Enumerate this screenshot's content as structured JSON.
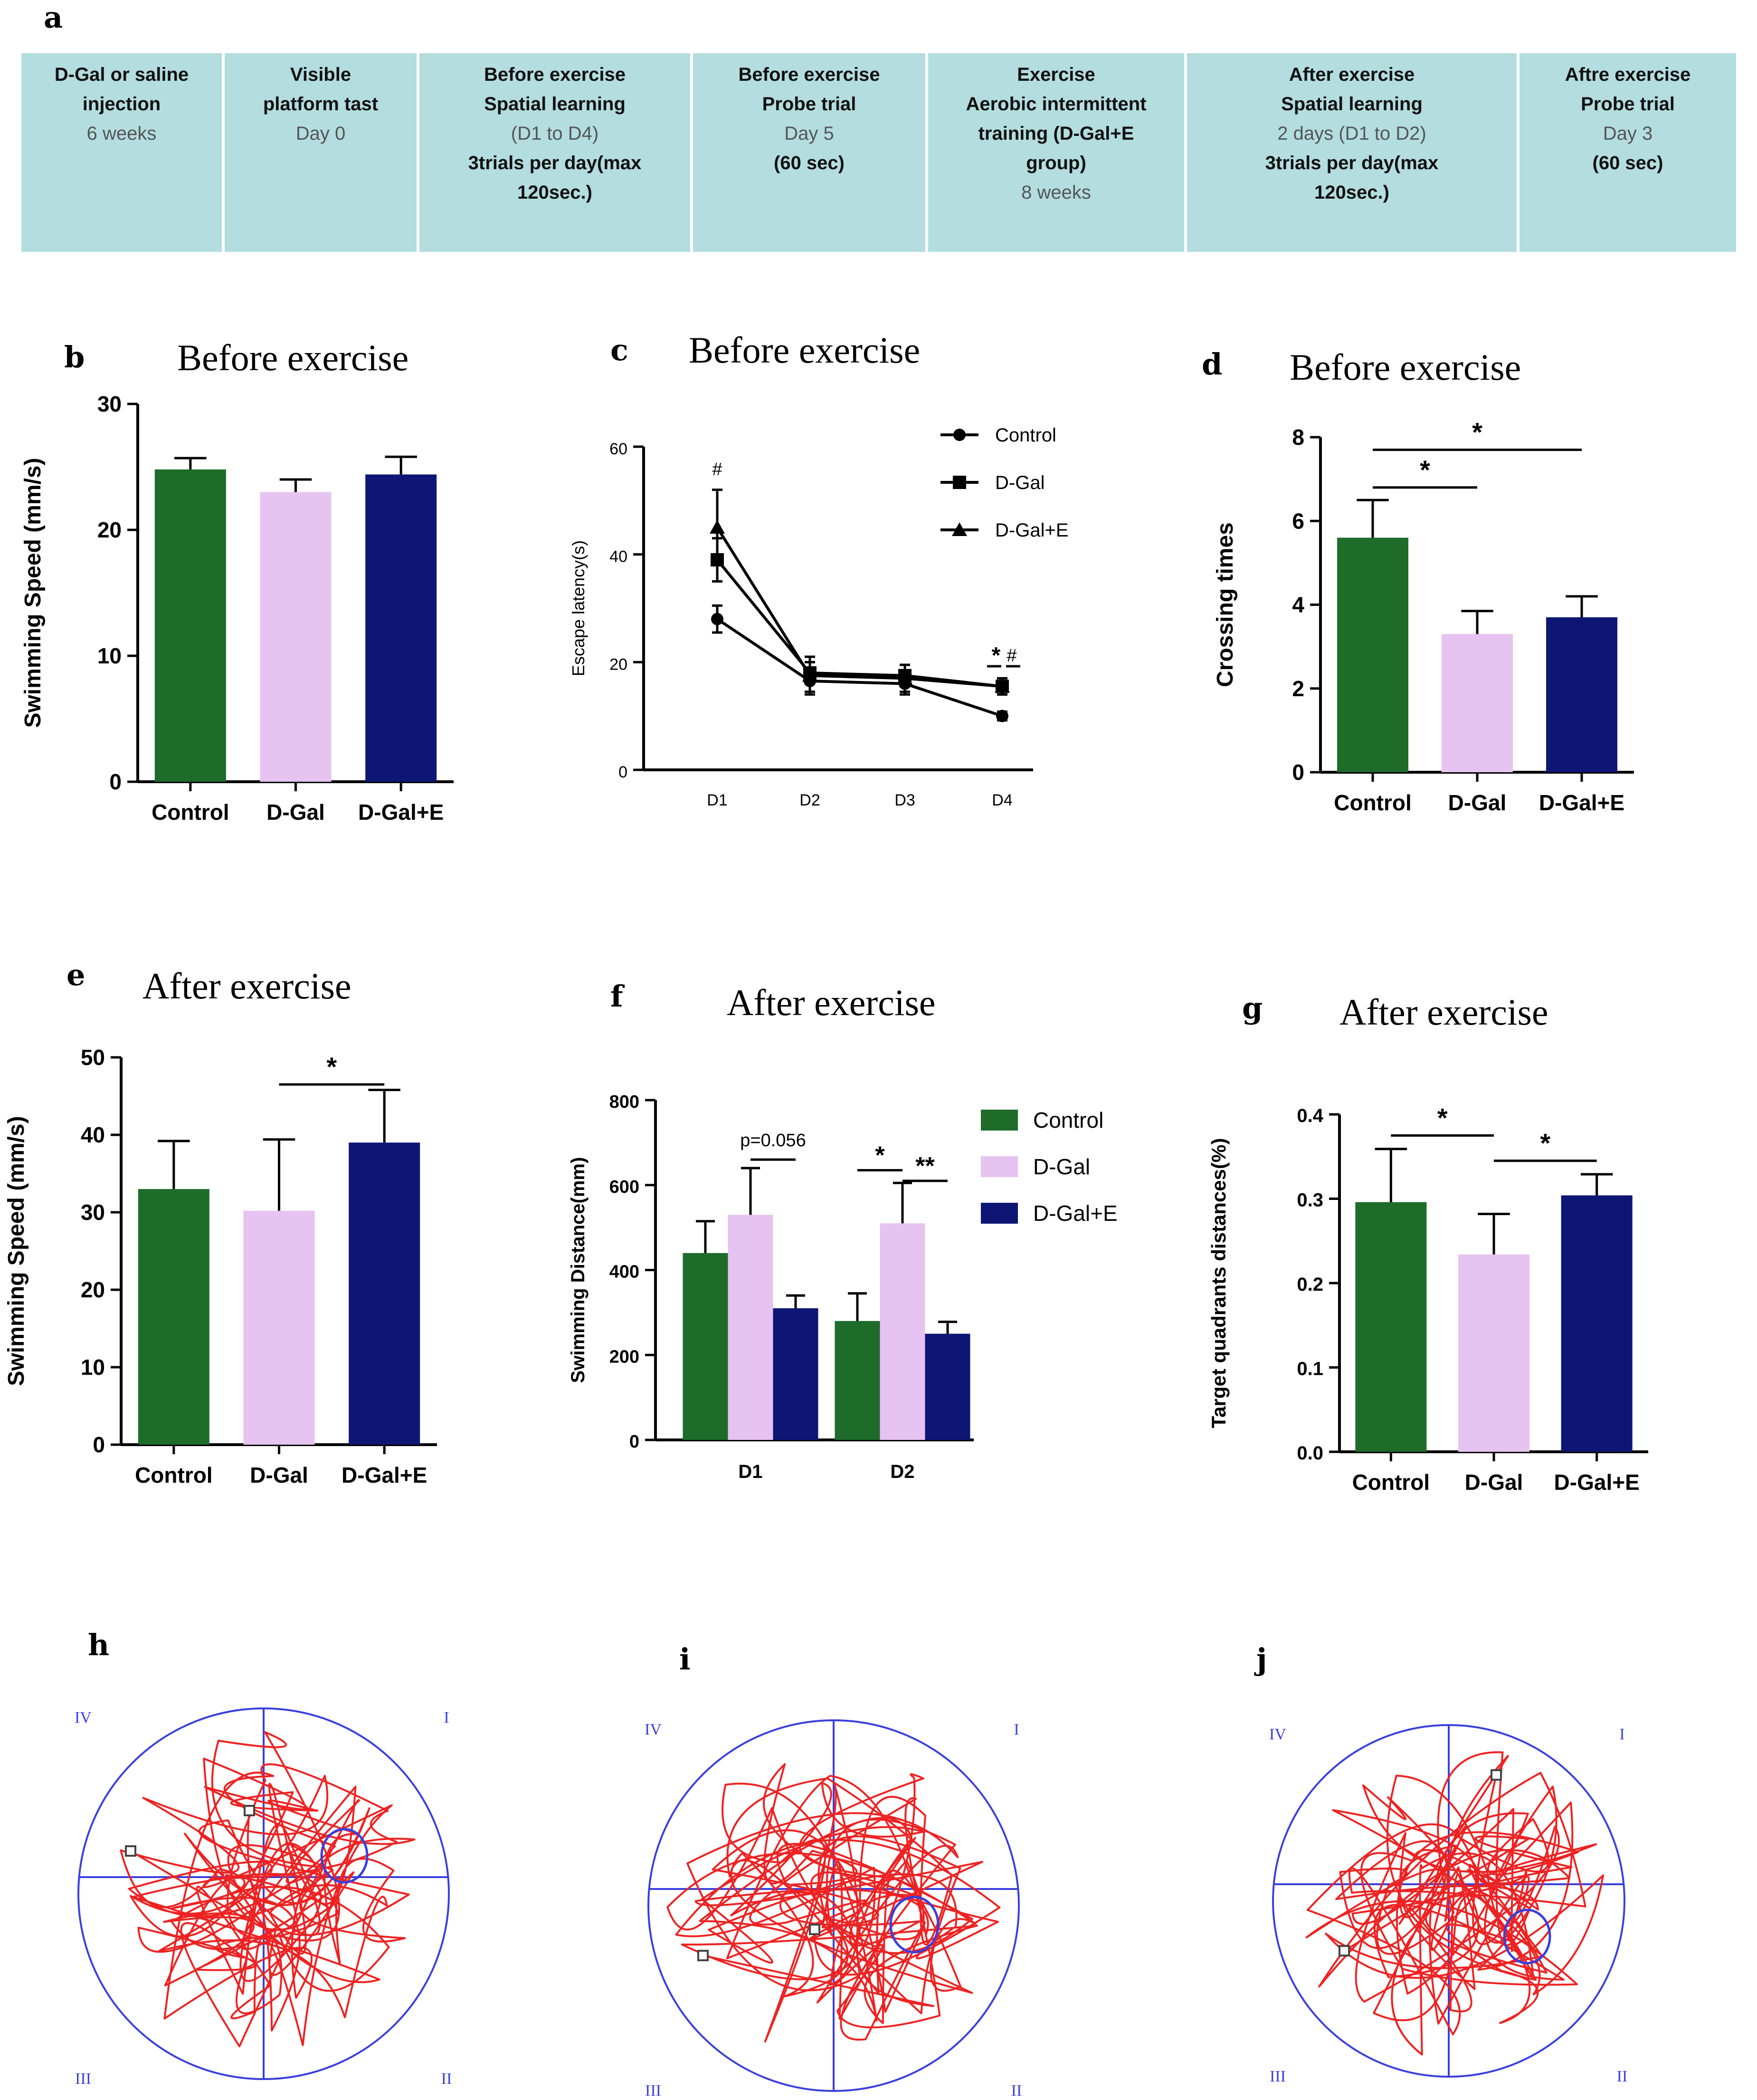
{
  "panels": {
    "a": {
      "letter": "a"
    },
    "b": {
      "letter": "b",
      "title": "Before exercise"
    },
    "c": {
      "letter": "c",
      "title": "Before exercise"
    },
    "d": {
      "letter": "d",
      "title": "Before exercise"
    },
    "e": {
      "letter": "e",
      "title": "After exercise"
    },
    "f": {
      "letter": "f",
      "title": "After exercise"
    },
    "g": {
      "letter": "g",
      "title": "After exercise"
    },
    "h": {
      "letter": "h"
    },
    "i": {
      "letter": "i"
    },
    "j": {
      "letter": "j"
    }
  },
  "timeline": [
    {
      "lines": [
        {
          "t": "D-Gal or  saline",
          "s": "b"
        },
        {
          "t": "injection",
          "s": "b"
        },
        {
          "t": "6 weeks",
          "s": "n"
        }
      ]
    },
    {
      "lines": [
        {
          "t": "Visible",
          "s": "b"
        },
        {
          "t": "platform tast",
          "s": "b"
        },
        {
          "t": "Day 0",
          "s": "n"
        }
      ]
    },
    {
      "lines": [
        {
          "t": "Before exercise",
          "s": "b"
        },
        {
          "t": "Spatial learning",
          "s": "b"
        },
        {
          "t": "(D1 to D4)",
          "s": "n"
        },
        {
          "t": "3trials per day(max",
          "s": "b"
        },
        {
          "t": "120sec.)",
          "s": "b"
        }
      ]
    },
    {
      "lines": [
        {
          "t": "Before exercise",
          "s": "b"
        },
        {
          "t": "Probe trial",
          "s": "b"
        },
        {
          "t": "Day 5",
          "s": "n"
        },
        {
          "t": "(60 sec)",
          "s": "b"
        }
      ]
    },
    {
      "lines": [
        {
          "t": "Exercise",
          "s": "b"
        },
        {
          "t": "Aerobic intermittent",
          "s": "b"
        },
        {
          "t": "training (D-Gal+E",
          "s": "b"
        },
        {
          "t": "group)",
          "s": "b"
        },
        {
          "t": "8 weeks",
          "s": "n"
        }
      ]
    },
    {
      "lines": [
        {
          "t": "After exercise",
          "s": "b"
        },
        {
          "t": "Spatial learning",
          "s": "b"
        },
        {
          "t": "2 days (D1 to D2)",
          "s": "n"
        },
        {
          "t": "3trials per day(max",
          "s": "b"
        },
        {
          "t": "120sec.)",
          "s": "b"
        }
      ]
    },
    {
      "lines": [
        {
          "t": "Aftre exercise",
          "s": "b"
        },
        {
          "t": "Probe trial",
          "s": "b"
        },
        {
          "t": "Day 3",
          "s": "n"
        },
        {
          "t": "(60 sec)",
          "s": "b"
        }
      ]
    }
  ],
  "colors": {
    "control": "#1e6b2a",
    "dgal": "#e6c3f0",
    "dgale": "#0e1675",
    "track": "#ee2222",
    "pool": "#3a3fdd",
    "axis": "#000000"
  },
  "chart_data": [
    {
      "panel": "b",
      "type": "bar",
      "title": "Before exercise",
      "ylabel": "Swimming Speed (mm/s)",
      "categories": [
        "Control",
        "D-Gal",
        "D-Gal+E"
      ],
      "values": [
        24.8,
        23.0,
        24.4
      ],
      "errors": [
        0.9,
        1.0,
        1.4
      ],
      "ylim": [
        0,
        30
      ],
      "yticks": [
        0,
        10,
        20,
        30
      ],
      "sig": []
    },
    {
      "panel": "c",
      "type": "line",
      "title": "Before exercise",
      "ylabel": "Escape latency(s)",
      "x": [
        "D1",
        "D2",
        "D3",
        "D4"
      ],
      "ylim": [
        0,
        60
      ],
      "yticks": [
        0,
        20,
        40,
        60
      ],
      "series": [
        {
          "name": "Control",
          "marker": "circle",
          "values": [
            28,
            16.5,
            16,
            10
          ],
          "errors": [
            2.5,
            2,
            2,
            0.8
          ]
        },
        {
          "name": "D-Gal",
          "marker": "square",
          "values": [
            39,
            18,
            17.5,
            15.5
          ],
          "errors": [
            4,
            2,
            2,
            1.5
          ]
        },
        {
          "name": "D-Gal+E",
          "marker": "triangle",
          "values": [
            45,
            17.5,
            17,
            15.5
          ],
          "errors": [
            7,
            3.5,
            2.5,
            1.5
          ]
        }
      ],
      "annotations": [
        {
          "text": "#",
          "x": "D1"
        },
        {
          "text": "*",
          "x": "D4"
        },
        {
          "text": "#",
          "x": "D4"
        }
      ]
    },
    {
      "panel": "d",
      "type": "bar",
      "title": "Before exercise",
      "ylabel": "Crossing times",
      "categories": [
        "Control",
        "D-Gal",
        "D-Gal+E"
      ],
      "values": [
        5.6,
        3.3,
        3.7
      ],
      "errors": [
        0.9,
        0.55,
        0.5
      ],
      "ylim": [
        0,
        8
      ],
      "yticks": [
        0,
        2,
        4,
        6,
        8
      ],
      "sig": [
        {
          "from": 0,
          "to": 1,
          "level": 6.8,
          "text": "*"
        },
        {
          "from": 0,
          "to": 2,
          "level": 7.7,
          "text": "*"
        }
      ]
    },
    {
      "panel": "e",
      "type": "bar",
      "title": "After exercise",
      "ylabel": "Swimming Speed (mm/s)",
      "categories": [
        "Control",
        "D-Gal",
        "D-Gal+E"
      ],
      "values": [
        33,
        30.2,
        39
      ],
      "errors": [
        6.2,
        9.2,
        6.8
      ],
      "ylim": [
        0,
        50
      ],
      "yticks": [
        0,
        10,
        20,
        30,
        40,
        50
      ],
      "sig": [
        {
          "from": 1,
          "to": 2,
          "level": 46.5,
          "text": "*"
        }
      ]
    },
    {
      "panel": "f",
      "type": "grouped-bar",
      "title": "After exercise",
      "ylabel": "Swimming Distance(mm)",
      "categories": [
        "D1",
        "D2"
      ],
      "ylim": [
        0,
        800
      ],
      "yticks": [
        0,
        200,
        400,
        600,
        800
      ],
      "series": [
        {
          "name": "Control",
          "values": [
            440,
            280
          ],
          "errors": [
            75,
            65
          ]
        },
        {
          "name": "D-Gal",
          "values": [
            530,
            510
          ],
          "errors": [
            110,
            95
          ]
        },
        {
          "name": "D-Gal+E",
          "values": [
            310,
            250
          ],
          "errors": [
            30,
            28
          ]
        }
      ],
      "sig": [
        {
          "group": 0,
          "from": 1,
          "to": 2,
          "level": 660,
          "text": "p=0.056"
        },
        {
          "group": 1,
          "from": 0,
          "to": 1,
          "level": 635,
          "text": "*"
        },
        {
          "group": 1,
          "from": 1,
          "to": 2,
          "level": 610,
          "text": "**"
        }
      ]
    },
    {
      "panel": "g",
      "type": "bar",
      "title": "After exercise",
      "ylabel": "Target quadrants distances(%)",
      "categories": [
        "Control",
        "D-Gal",
        "D-Gal+E"
      ],
      "values": [
        0.296,
        0.234,
        0.304
      ],
      "errors": [
        0.063,
        0.048,
        0.025
      ],
      "ylim": [
        0,
        0.4
      ],
      "yticks": [
        "0.0",
        "0.1",
        "0.2",
        "0.3",
        "0.4"
      ],
      "ytickvalues": [
        0,
        0.1,
        0.2,
        0.3,
        0.4
      ],
      "sig": [
        {
          "from": 0,
          "to": 1,
          "level": 0.375,
          "text": "*"
        },
        {
          "from": 1,
          "to": 2,
          "level": 0.345,
          "text": "*"
        }
      ]
    }
  ],
  "tracks": [
    {
      "panel": "h",
      "quadrant_labels": {
        "tl": "IV",
        "tr": "I",
        "bl": "III",
        "br": "II"
      }
    },
    {
      "panel": "i",
      "quadrant_labels": {
        "tl": "IV",
        "tr": "I",
        "bl": "III",
        "br": "II"
      }
    },
    {
      "panel": "j",
      "quadrant_labels": {
        "tl": "IV",
        "tr": "I",
        "bl": "III",
        "br": "II"
      }
    }
  ]
}
